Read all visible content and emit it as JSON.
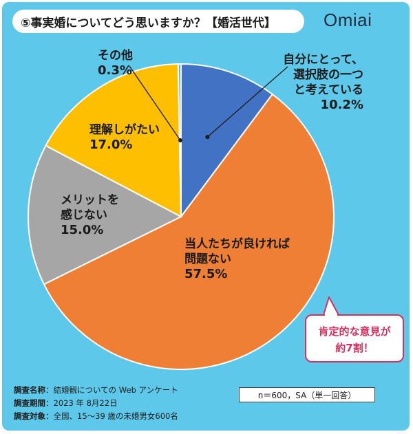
{
  "title": "⑤事実婚についてどう思いますか？【婚活世代】",
  "brand": "Omiai",
  "colors": {
    "background": "#5ec8ea",
    "callout": "#d3315d"
  },
  "chart_data": {
    "type": "pie",
    "title": "⑤事実婚についてどう思いますか？【婚活世代】",
    "start": "12 o'clock, clockwise",
    "slices": [
      {
        "label_lines": [
          "自分にとって、",
          "選択肢の一つ",
          "と考えている"
        ],
        "value": 10.2,
        "value_label": "10.2%",
        "color": "#4272c4"
      },
      {
        "label_lines": [
          "当人たちが良ければ",
          "問題ない"
        ],
        "value": 57.5,
        "value_label": "57.5%",
        "color": "#ee7f34"
      },
      {
        "label_lines": [
          "メリットを",
          "感じない"
        ],
        "value": 15.0,
        "value_label": "15.0%",
        "color": "#a6a6a6"
      },
      {
        "label_lines": [
          "理解しがたい"
        ],
        "value": 17.0,
        "value_label": "17.0%",
        "color": "#fdbf00"
      },
      {
        "label_lines": [
          "その他"
        ],
        "value": 0.3,
        "value_label": "0.3%",
        "color": "#6aaed8"
      }
    ]
  },
  "callout": {
    "line1": "肯定的な意見が",
    "line2": "約7割！"
  },
  "footer": {
    "rows": [
      {
        "key": "調査名称",
        "value": "：結婚観についての Web アンケート"
      },
      {
        "key": "調査期間",
        "value": "：2023 年 8月22日"
      },
      {
        "key": "調査対象",
        "value": "：全国、15～39 歳の未婚男女600名"
      }
    ],
    "sample": "n＝600，SA（単一回答）"
  }
}
